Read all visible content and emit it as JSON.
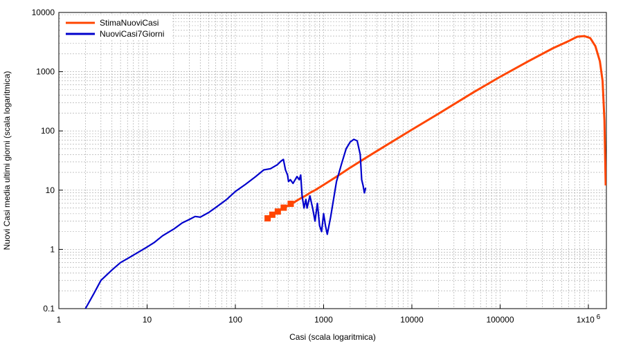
{
  "chart_data": {
    "type": "line",
    "title": "",
    "xlabel": "Casi (scala logaritmica)",
    "ylabel": "Nuovi Casi media ultimi giorni (scala logaritmica)",
    "x_scale": "log",
    "y_scale": "log",
    "xlim": [
      1,
      1600000
    ],
    "ylim": [
      0.1,
      10000
    ],
    "grid": true,
    "legend_position": "top-left",
    "x_ticks": [
      {
        "value": 1,
        "label": "1"
      },
      {
        "value": 10,
        "label": "10"
      },
      {
        "value": 100,
        "label": "100"
      },
      {
        "value": 1000,
        "label": "1000"
      },
      {
        "value": 10000,
        "label": "10000"
      },
      {
        "value": 100000,
        "label": "100000"
      },
      {
        "value": 1000000,
        "label": "1x10 6"
      }
    ],
    "y_ticks": [
      {
        "value": 0.1,
        "label": "0.1"
      },
      {
        "value": 1,
        "label": "1"
      },
      {
        "value": 10,
        "label": "10"
      },
      {
        "value": 100,
        "label": "100"
      },
      {
        "value": 1000,
        "label": "1000"
      },
      {
        "value": 10000,
        "label": "10000"
      }
    ],
    "series": [
      {
        "name": "StimaNuoviCasi",
        "color": "#ff4500",
        "x": [
          230,
          240,
          260,
          280,
          300,
          320,
          350,
          380,
          420,
          460,
          500,
          560,
          620,
          700,
          800,
          1000,
          1500,
          2000,
          3000,
          5000,
          10000,
          20000,
          50000,
          100000,
          200000,
          400000,
          600000,
          750000,
          900000,
          1050000,
          1200000,
          1350000,
          1450000,
          1520000,
          1570000
        ],
        "y": [
          3.3,
          3.5,
          3.8,
          4.0,
          4.3,
          4.6,
          5.0,
          5.3,
          5.8,
          6.2,
          6.7,
          7.4,
          8.0,
          9.0,
          10,
          12.3,
          18,
          24,
          35,
          56,
          105,
          195,
          450,
          820,
          1450,
          2500,
          3300,
          3900,
          4000,
          3700,
          2700,
          1500,
          700,
          150,
          12
        ]
      },
      {
        "name": "NuoviCasi7Giorni",
        "color": "#0000cc",
        "x": [
          2,
          2.5,
          3,
          4,
          5,
          6,
          8,
          10,
          12,
          15,
          20,
          25,
          30,
          35,
          40,
          50,
          60,
          80,
          100,
          130,
          170,
          210,
          250,
          300,
          330,
          350,
          370,
          390,
          400,
          420,
          450,
          500,
          530,
          550,
          570,
          600,
          630,
          650,
          700,
          750,
          800,
          850,
          900,
          950,
          1000,
          1050,
          1100,
          1200,
          1400,
          1600,
          1800,
          2000,
          2200,
          2400,
          2600,
          2700,
          2800,
          2900,
          3000
        ],
        "y": [
          0.1,
          0.18,
          0.3,
          0.45,
          0.6,
          0.7,
          0.9,
          1.1,
          1.3,
          1.7,
          2.2,
          2.8,
          3.2,
          3.6,
          3.5,
          4.2,
          5.1,
          7.0,
          9.5,
          12.5,
          17,
          22,
          23,
          27,
          31,
          33,
          22,
          18,
          14,
          15,
          13,
          17,
          15,
          18,
          8,
          5,
          7,
          5,
          8,
          5,
          3,
          6,
          2.5,
          2,
          4,
          2.5,
          1.8,
          3.5,
          14,
          28,
          50,
          65,
          72,
          68,
          40,
          15,
          12,
          9,
          11
        ]
      }
    ]
  }
}
